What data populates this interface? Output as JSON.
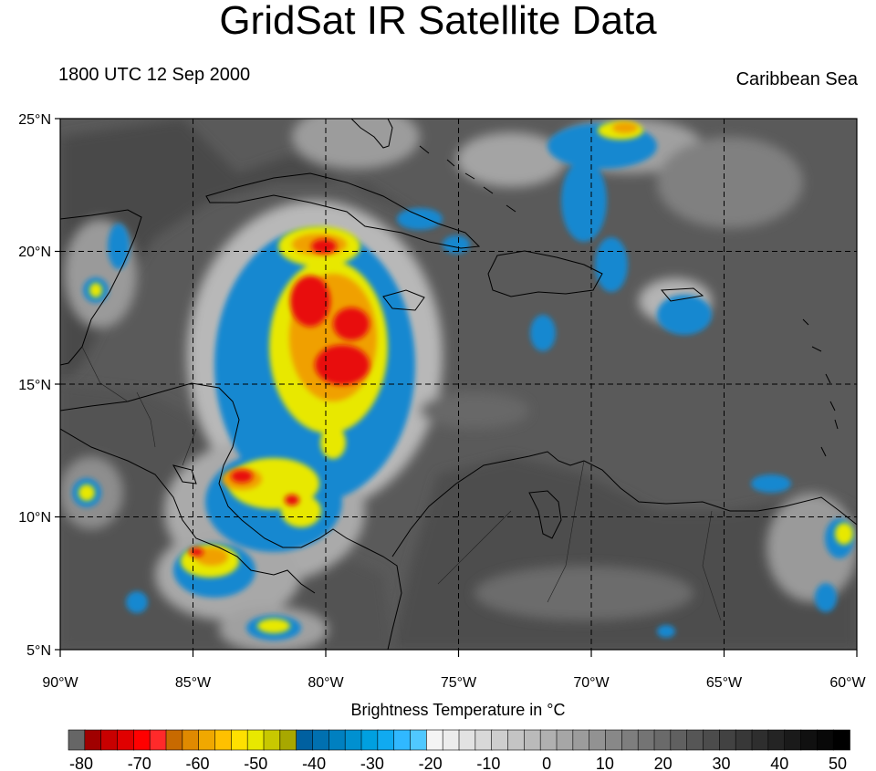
{
  "title": "GridSat IR Satellite Data",
  "left_subtitle": "1800 UTC 12 Sep 2000",
  "right_subtitle": "Caribbean Sea",
  "map": {
    "lon_range": [
      -90,
      -60
    ],
    "lat_range": [
      5,
      25
    ],
    "lat_labels": [
      "25°N",
      "20°N",
      "15°N",
      "10°N",
      "5°N"
    ],
    "lon_labels": [
      "90°W",
      "85°W",
      "80°W",
      "75°W",
      "70°W",
      "65°W",
      "60°W"
    ],
    "grid": "dashed",
    "background_color": "#5a5a5a"
  },
  "colorbar": {
    "title": "Brightness Temperature in °C",
    "tick_labels": [
      "-80",
      "-70",
      "-60",
      "-50",
      "-40",
      "-30",
      "-20",
      "-10",
      "0",
      "10",
      "20",
      "30",
      "40",
      "50"
    ],
    "colors": [
      "#666666",
      "#a00000",
      "#c80000",
      "#e00000",
      "#ff0000",
      "#ff2a2a",
      "#c86a00",
      "#e08a00",
      "#f0a800",
      "#ffc000",
      "#ffe000",
      "#e8e800",
      "#c8c800",
      "#a8a800",
      "#0060a0",
      "#0070b0",
      "#0080c0",
      "#0090d0",
      "#00a0e0",
      "#10aaf0",
      "#30b8ff",
      "#50c8ff",
      "#f4f4f4",
      "#ececec",
      "#e2e2e2",
      "#d8d8d8",
      "#cecece",
      "#c4c4c4",
      "#bababa",
      "#b0b0b0",
      "#a6a6a6",
      "#9c9c9c",
      "#929292",
      "#888888",
      "#7e7e7e",
      "#747474",
      "#6a6a6a",
      "#606060",
      "#565656",
      "#4c4c4c",
      "#424242",
      "#383838",
      "#2e2e2e",
      "#242424",
      "#1a1a1a",
      "#101010",
      "#080808",
      "#000000"
    ]
  }
}
